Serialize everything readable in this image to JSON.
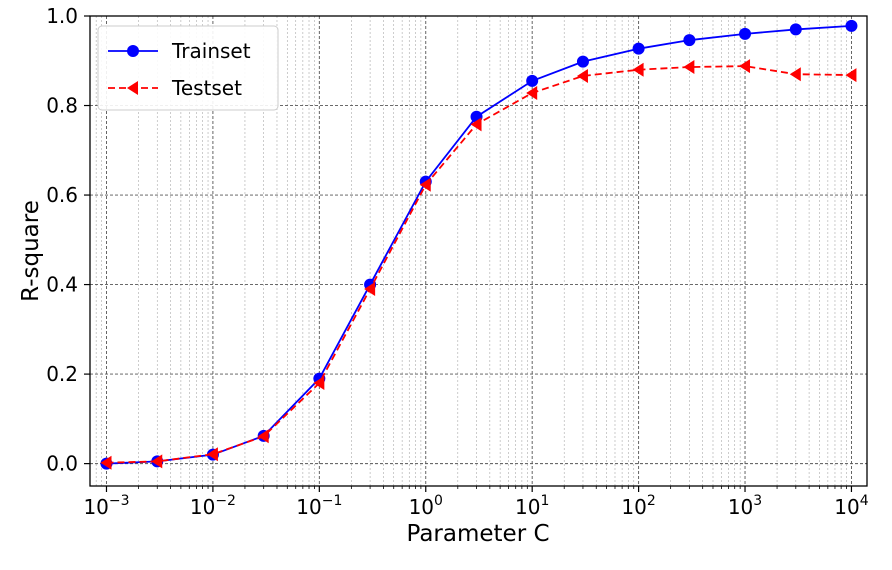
{
  "chart_data": {
    "type": "line",
    "xlabel": "Parameter C",
    "ylabel": "R-square",
    "xscale": "log",
    "xlim": [
      0.0007,
      14000
    ],
    "ylim": [
      -0.05,
      1.0
    ],
    "grid": true,
    "legend_position": "top-left",
    "x_tick_labels": [
      {
        "base": "10",
        "exp": "−3"
      },
      {
        "base": "10",
        "exp": "−2"
      },
      {
        "base": "10",
        "exp": "−1"
      },
      {
        "base": "10",
        "exp": "0"
      },
      {
        "base": "10",
        "exp": "1"
      },
      {
        "base": "10",
        "exp": "2"
      },
      {
        "base": "10",
        "exp": "3"
      },
      {
        "base": "10",
        "exp": "4"
      }
    ],
    "y_tick_labels": [
      "0.0",
      "0.2",
      "0.4",
      "0.6",
      "0.8",
      "1.0"
    ],
    "x": [
      0.001,
      0.003,
      0.01,
      0.03,
      0.1,
      0.3,
      1,
      3,
      10,
      30,
      100,
      300,
      1000,
      3000,
      10000
    ],
    "series": [
      {
        "name": "Trainset",
        "color": "#0000ff",
        "linestyle": "solid",
        "marker": "circle",
        "values": [
          0.0,
          0.005,
          0.02,
          0.062,
          0.19,
          0.4,
          0.63,
          0.775,
          0.855,
          0.898,
          0.927,
          0.946,
          0.96,
          0.97,
          0.978
        ]
      },
      {
        "name": "Testset",
        "color": "#ff0000",
        "linestyle": "dashed",
        "marker": "triangle-left",
        "values": [
          0.002,
          0.005,
          0.021,
          0.061,
          0.18,
          0.39,
          0.623,
          0.758,
          0.828,
          0.866,
          0.88,
          0.886,
          0.888,
          0.87,
          0.868
        ]
      }
    ]
  }
}
